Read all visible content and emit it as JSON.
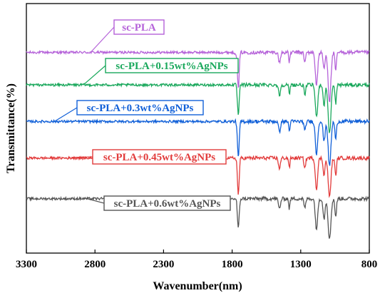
{
  "chart_data": {
    "type": "line",
    "xlabel": "Wavenumber(nm)",
    "ylabel": "Transmittance(%)",
    "xlim": [
      3300,
      800
    ],
    "x_reversed": true,
    "x_ticks": [
      3300,
      2800,
      2300,
      1800,
      1300,
      800
    ],
    "y_ticks_visible": false,
    "grid": false,
    "legend_placement": "inline labels with leader lines",
    "series": [
      {
        "name": "sc-PLA",
        "color": "#b562d9",
        "baseline": 9.0,
        "dips": [
          {
            "x": 1755,
            "depth": 1.8,
            "width": 9
          },
          {
            "x": 1455,
            "depth": 0.5,
            "width": 10
          },
          {
            "x": 1383,
            "depth": 0.5,
            "width": 6
          },
          {
            "x": 1270,
            "depth": 0.5,
            "width": 8
          },
          {
            "x": 1185,
            "depth": 1.6,
            "width": 12
          },
          {
            "x": 1130,
            "depth": 0.8,
            "width": 10
          },
          {
            "x": 1090,
            "depth": 2.4,
            "width": 14
          },
          {
            "x": 1045,
            "depth": 0.9,
            "width": 8
          }
        ]
      },
      {
        "name": "sc-PLA+0.15wt%AgNPs",
        "color": "#1aa85c",
        "baseline": 7.4,
        "dips": [
          {
            "x": 1755,
            "depth": 1.5,
            "width": 9
          },
          {
            "x": 1455,
            "depth": 0.5,
            "width": 10
          },
          {
            "x": 1383,
            "depth": 0.5,
            "width": 6
          },
          {
            "x": 1270,
            "depth": 0.5,
            "width": 8
          },
          {
            "x": 1185,
            "depth": 1.6,
            "width": 12
          },
          {
            "x": 1130,
            "depth": 1.0,
            "width": 10
          },
          {
            "x": 1090,
            "depth": 2.4,
            "width": 14
          },
          {
            "x": 1045,
            "depth": 0.9,
            "width": 8
          }
        ]
      },
      {
        "name": "sc-PLA+0.3wt%AgNPs",
        "color": "#1160d8",
        "baseline": 5.6,
        "dips": [
          {
            "x": 1755,
            "depth": 1.8,
            "width": 9
          },
          {
            "x": 1455,
            "depth": 0.5,
            "width": 10
          },
          {
            "x": 1383,
            "depth": 0.5,
            "width": 6
          },
          {
            "x": 1270,
            "depth": 0.5,
            "width": 8
          },
          {
            "x": 1185,
            "depth": 1.6,
            "width": 12
          },
          {
            "x": 1130,
            "depth": 1.0,
            "width": 10
          },
          {
            "x": 1090,
            "depth": 2.2,
            "width": 14
          },
          {
            "x": 1045,
            "depth": 0.9,
            "width": 8
          }
        ]
      },
      {
        "name": "sc-PLA+0.45wt%AgNPs",
        "color": "#e23b3b",
        "baseline": 3.8,
        "dips": [
          {
            "x": 1755,
            "depth": 1.8,
            "width": 9
          },
          {
            "x": 1455,
            "depth": 0.5,
            "width": 10
          },
          {
            "x": 1383,
            "depth": 0.5,
            "width": 6
          },
          {
            "x": 1270,
            "depth": 0.5,
            "width": 8
          },
          {
            "x": 1185,
            "depth": 1.5,
            "width": 12
          },
          {
            "x": 1130,
            "depth": 0.8,
            "width": 10
          },
          {
            "x": 1090,
            "depth": 1.9,
            "width": 14
          },
          {
            "x": 1045,
            "depth": 0.9,
            "width": 8
          }
        ]
      },
      {
        "name": "sc-PLA+0.6wt%AgNPs",
        "color": "#555555",
        "baseline": 1.8,
        "dips": [
          {
            "x": 1755,
            "depth": 1.5,
            "width": 9
          },
          {
            "x": 1455,
            "depth": 0.5,
            "width": 10
          },
          {
            "x": 1383,
            "depth": 0.5,
            "width": 6
          },
          {
            "x": 1270,
            "depth": 0.5,
            "width": 8
          },
          {
            "x": 1185,
            "depth": 1.5,
            "width": 12
          },
          {
            "x": 1130,
            "depth": 1.0,
            "width": 10
          },
          {
            "x": 1090,
            "depth": 2.0,
            "width": 14
          },
          {
            "x": 1045,
            "depth": 0.9,
            "width": 8
          }
        ]
      }
    ]
  }
}
